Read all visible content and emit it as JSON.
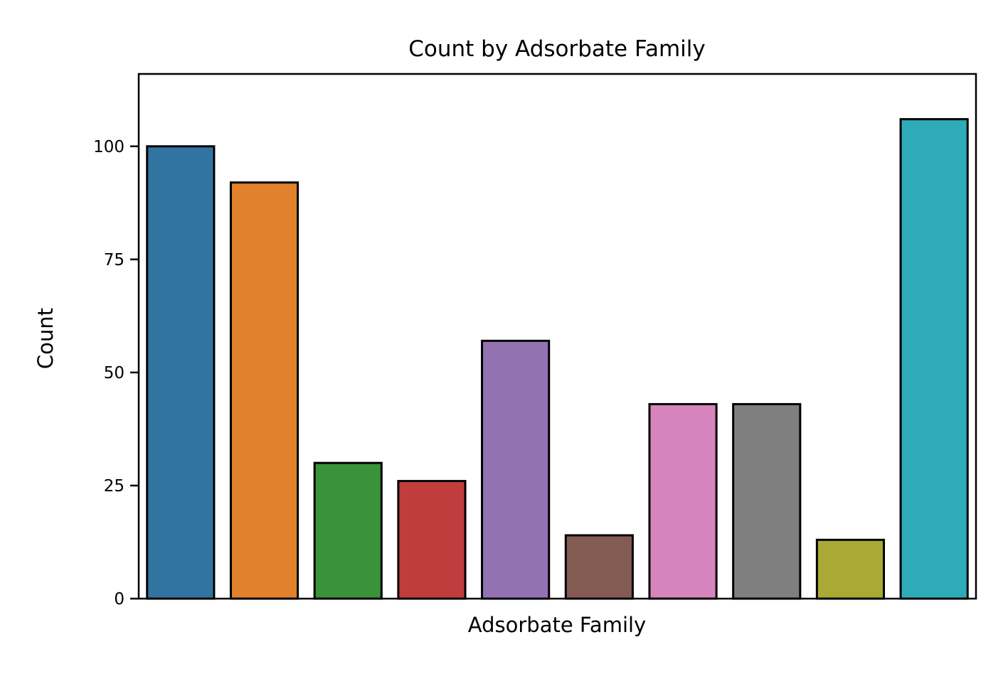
{
  "chart_data": {
    "type": "bar",
    "title": "Count by Adsorbate Family",
    "xlabel": "Adsorbate Family",
    "ylabel": "Count",
    "categories": [
      "",
      "",
      "",
      "",
      "",
      "",
      "",
      "",
      "",
      ""
    ],
    "values": [
      100,
      92,
      30,
      26,
      57,
      14,
      43,
      43,
      13,
      106
    ],
    "colors": [
      "#3274a1",
      "#e1812c",
      "#3a923a",
      "#c03d3e",
      "#9372b2",
      "#845b53",
      "#d684bd",
      "#7f7f7f",
      "#a9aa35",
      "#2eabb8"
    ],
    "edge_color": "#000000",
    "ylim": [
      0,
      116
    ],
    "yticks": [
      0,
      25,
      50,
      75,
      100
    ],
    "grid": false,
    "legend": "none"
  }
}
